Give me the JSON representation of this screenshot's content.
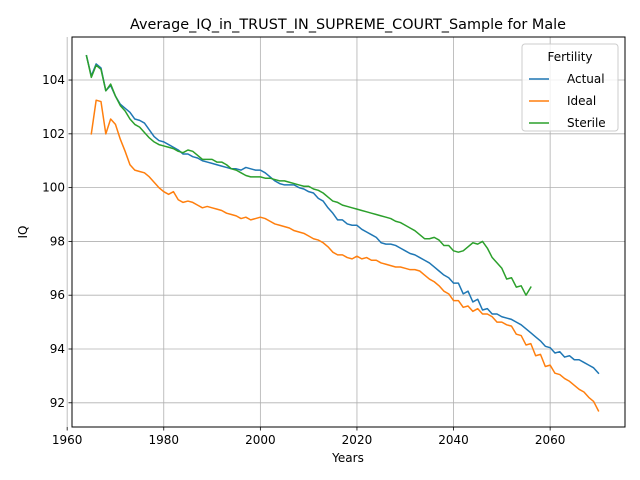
{
  "chart_data": {
    "type": "line",
    "title": "Average_IQ_in_TRUST_IN_SUPREME_COURT_Sample for Male",
    "xlabel": "Years",
    "ylabel": "IQ",
    "xlim": [
      1961,
      2075.5
    ],
    "ylim": [
      91.1,
      105.6
    ],
    "xticks": [
      1960,
      1980,
      2000,
      2020,
      2040,
      2060
    ],
    "yticks": [
      92,
      94,
      96,
      98,
      100,
      102,
      104
    ],
    "grid": true,
    "legend": {
      "title": "Fertility",
      "placement": "top-right"
    },
    "series": [
      {
        "name": "Actual",
        "color": "#1f77b4",
        "x": [
          1964,
          1965,
          1966,
          1967,
          1968,
          1969,
          1970,
          1971,
          1972,
          1973,
          1974,
          1975,
          1976,
          1977,
          1978,
          1979,
          1980,
          1981,
          1982,
          1983,
          1984,
          1985,
          1986,
          1987,
          1988,
          1989,
          1990,
          1991,
          1992,
          1993,
          1994,
          1995,
          1996,
          1997,
          1998,
          1999,
          2000,
          2001,
          2002,
          2003,
          2004,
          2005,
          2006,
          2007,
          2008,
          2009,
          2010,
          2011,
          2012,
          2013,
          2014,
          2015,
          2016,
          2017,
          2018,
          2019,
          2020,
          2021,
          2022,
          2023,
          2024,
          2025,
          2026,
          2027,
          2028,
          2029,
          2030,
          2031,
          2032,
          2033,
          2034,
          2035,
          2036,
          2037,
          2038,
          2039,
          2040,
          2041,
          2042,
          2043,
          2044,
          2045,
          2046,
          2047,
          2048,
          2049,
          2050,
          2051,
          2052,
          2053,
          2054,
          2055,
          2056,
          2057,
          2058,
          2059,
          2060,
          2061,
          2062,
          2063,
          2064,
          2065,
          2066,
          2067,
          2068,
          2069,
          2070
        ],
        "values": [
          104.9,
          104.15,
          104.6,
          104.45,
          103.6,
          103.8,
          103.4,
          103.1,
          102.95,
          102.8,
          102.55,
          102.5,
          102.4,
          102.15,
          101.9,
          101.75,
          101.7,
          101.6,
          101.5,
          101.4,
          101.25,
          101.25,
          101.15,
          101.1,
          101.0,
          100.95,
          100.9,
          100.85,
          100.8,
          100.75,
          100.7,
          100.7,
          100.65,
          100.75,
          100.7,
          100.65,
          100.65,
          100.55,
          100.4,
          100.25,
          100.15,
          100.1,
          100.1,
          100.1,
          100.0,
          99.95,
          99.85,
          99.8,
          99.6,
          99.5,
          99.25,
          99.05,
          98.8,
          98.8,
          98.65,
          98.6,
          98.6,
          98.45,
          98.35,
          98.25,
          98.15,
          97.95,
          97.9,
          97.9,
          97.85,
          97.75,
          97.65,
          97.55,
          97.5,
          97.4,
          97.3,
          97.2,
          97.05,
          96.9,
          96.75,
          96.65,
          96.45,
          96.45,
          96.05,
          96.15,
          95.75,
          95.85,
          95.45,
          95.5,
          95.3,
          95.3,
          95.2,
          95.15,
          95.1,
          95.0,
          94.9,
          94.75,
          94.6,
          94.45,
          94.3,
          94.1,
          94.05,
          93.85,
          93.9,
          93.7,
          93.75,
          93.6,
          93.6,
          93.5,
          93.4,
          93.3,
          93.1
        ]
      },
      {
        "name": "Ideal",
        "color": "#ff7f0e",
        "x": [
          1965,
          1966,
          1967,
          1968,
          1969,
          1970,
          1971,
          1972,
          1973,
          1974,
          1975,
          1976,
          1977,
          1978,
          1979,
          1980,
          1981,
          1982,
          1983,
          1984,
          1985,
          1986,
          1987,
          1988,
          1989,
          1990,
          1991,
          1992,
          1993,
          1994,
          1995,
          1996,
          1997,
          1998,
          1999,
          2000,
          2001,
          2002,
          2003,
          2004,
          2005,
          2006,
          2007,
          2008,
          2009,
          2010,
          2011,
          2012,
          2013,
          2014,
          2015,
          2016,
          2017,
          2018,
          2019,
          2020,
          2021,
          2022,
          2023,
          2024,
          2025,
          2026,
          2027,
          2028,
          2029,
          2030,
          2031,
          2032,
          2033,
          2034,
          2035,
          2036,
          2037,
          2038,
          2039,
          2040,
          2041,
          2042,
          2043,
          2044,
          2045,
          2046,
          2047,
          2048,
          2049,
          2050,
          2051,
          2052,
          2053,
          2054,
          2055,
          2056,
          2057,
          2058,
          2059,
          2060,
          2061,
          2062,
          2063,
          2064,
          2065,
          2066,
          2067,
          2068,
          2069,
          2070
        ],
        "values": [
          102.0,
          103.25,
          103.2,
          102.0,
          102.55,
          102.35,
          101.8,
          101.35,
          100.85,
          100.65,
          100.6,
          100.55,
          100.4,
          100.2,
          100.0,
          99.85,
          99.75,
          99.85,
          99.55,
          99.45,
          99.5,
          99.45,
          99.35,
          99.25,
          99.3,
          99.25,
          99.2,
          99.15,
          99.05,
          99.0,
          98.95,
          98.85,
          98.9,
          98.8,
          98.85,
          98.9,
          98.85,
          98.75,
          98.65,
          98.6,
          98.55,
          98.5,
          98.4,
          98.35,
          98.3,
          98.2,
          98.1,
          98.05,
          97.95,
          97.8,
          97.6,
          97.5,
          97.5,
          97.4,
          97.35,
          97.45,
          97.35,
          97.4,
          97.3,
          97.3,
          97.2,
          97.15,
          97.1,
          97.05,
          97.05,
          97.0,
          96.95,
          96.95,
          96.9,
          96.75,
          96.6,
          96.5,
          96.35,
          96.15,
          96.05,
          95.8,
          95.8,
          95.55,
          95.6,
          95.4,
          95.5,
          95.3,
          95.3,
          95.2,
          95.0,
          95.0,
          94.9,
          94.85,
          94.55,
          94.5,
          94.15,
          94.2,
          93.75,
          93.8,
          93.35,
          93.4,
          93.1,
          93.05,
          92.9,
          92.8,
          92.65,
          92.5,
          92.4,
          92.2,
          92.05,
          91.7
        ]
      },
      {
        "name": "Sterile",
        "color": "#2ca02c",
        "x": [
          1964,
          1965,
          1966,
          1967,
          1968,
          1969,
          1970,
          1971,
          1972,
          1973,
          1974,
          1975,
          1976,
          1977,
          1978,
          1979,
          1980,
          1981,
          1982,
          1983,
          1984,
          1985,
          1986,
          1987,
          1988,
          1989,
          1990,
          1991,
          1992,
          1993,
          1994,
          1995,
          1996,
          1997,
          1998,
          1999,
          2000,
          2001,
          2002,
          2003,
          2004,
          2005,
          2006,
          2007,
          2008,
          2009,
          2010,
          2011,
          2012,
          2013,
          2014,
          2015,
          2016,
          2017,
          2018,
          2019,
          2020,
          2021,
          2022,
          2023,
          2024,
          2025,
          2026,
          2027,
          2028,
          2029,
          2030,
          2031,
          2032,
          2033,
          2034,
          2035,
          2036,
          2037,
          2038,
          2039,
          2040,
          2041,
          2042,
          2043,
          2044,
          2045,
          2046,
          2047,
          2048,
          2049,
          2050,
          2051,
          2052,
          2053,
          2054,
          2055,
          2056,
          2057
        ],
        "values": [
          104.9,
          104.1,
          104.55,
          104.4,
          103.6,
          103.85,
          103.4,
          103.05,
          102.85,
          102.55,
          102.35,
          102.25,
          102.05,
          101.85,
          101.7,
          101.6,
          101.55,
          101.5,
          101.45,
          101.35,
          101.3,
          101.4,
          101.35,
          101.2,
          101.05,
          101.05,
          101.05,
          100.95,
          100.95,
          100.85,
          100.7,
          100.65,
          100.55,
          100.45,
          100.4,
          100.4,
          100.4,
          100.35,
          100.35,
          100.3,
          100.25,
          100.25,
          100.2,
          100.15,
          100.1,
          100.05,
          100.05,
          99.95,
          99.9,
          99.8,
          99.65,
          99.5,
          99.45,
          99.35,
          99.3,
          99.25,
          99.2,
          99.15,
          99.1,
          99.05,
          99.0,
          98.95,
          98.9,
          98.85,
          98.75,
          98.7,
          98.6,
          98.5,
          98.4,
          98.25,
          98.1,
          98.1,
          98.15,
          98.05,
          97.85,
          97.85,
          97.65,
          97.6,
          97.65,
          97.8,
          97.95,
          97.9,
          98.0,
          97.75,
          97.4,
          97.2,
          97.0,
          96.6,
          96.65,
          96.3,
          96.35,
          96.0,
          96.3,
          null
        ]
      }
    ]
  }
}
